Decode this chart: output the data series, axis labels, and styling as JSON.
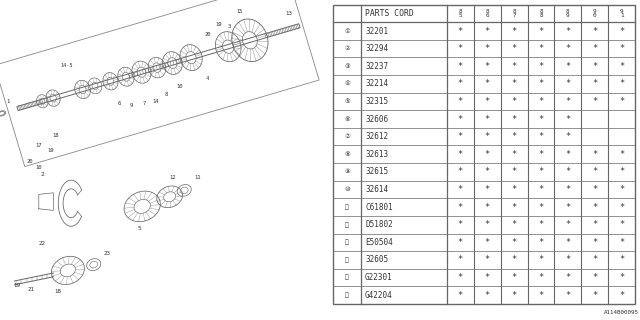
{
  "rows": [
    [
      "①",
      "32201",
      "*",
      "*",
      "*",
      "*",
      "*",
      "*",
      "*"
    ],
    [
      "②",
      "32294",
      "*",
      "*",
      "*",
      "*",
      "*",
      "*",
      "*"
    ],
    [
      "③",
      "32237",
      "*",
      "*",
      "*",
      "*",
      "*",
      "*",
      "*"
    ],
    [
      "④",
      "32214",
      "*",
      "*",
      "*",
      "*",
      "*",
      "*",
      "*"
    ],
    [
      "⑤",
      "32315",
      "*",
      "*",
      "*",
      "*",
      "*",
      "*",
      "*"
    ],
    [
      "⑥",
      "32606",
      "*",
      "*",
      "*",
      "*",
      "*",
      "",
      ""
    ],
    [
      "⑦",
      "32612",
      "*",
      "*",
      "*",
      "*",
      "*",
      "",
      ""
    ],
    [
      "⑧",
      "32613",
      "*",
      "*",
      "*",
      "*",
      "*",
      "*",
      "*"
    ],
    [
      "⑨",
      "32615",
      "*",
      "*",
      "*",
      "*",
      "*",
      "*",
      "*"
    ],
    [
      "⑩",
      "32614",
      "*",
      "*",
      "*",
      "*",
      "*",
      "*",
      "*"
    ],
    [
      "⑪",
      "C61801",
      "*",
      "*",
      "*",
      "*",
      "*",
      "*",
      "*"
    ],
    [
      "⑫",
      "D51802",
      "*",
      "*",
      "*",
      "*",
      "*",
      "*",
      "*"
    ],
    [
      "⑬",
      "E50504",
      "*",
      "*",
      "*",
      "*",
      "*",
      "*",
      "*"
    ],
    [
      "⑭",
      "32605",
      "*",
      "*",
      "*",
      "*",
      "*",
      "*",
      "*"
    ],
    [
      "⑮",
      "G22301",
      "*",
      "*",
      "*",
      "*",
      "*",
      "*",
      "*"
    ],
    [
      "⑯",
      "G42204",
      "*",
      "*",
      "*",
      "*",
      "*",
      "*",
      "*"
    ]
  ],
  "col_headers": [
    "8\n5",
    "8\n6",
    "8\n7",
    "8\n8",
    "8\n9",
    "9\n0",
    "9\n1"
  ],
  "bg_color": "#ffffff",
  "line_color": "#666666",
  "text_color": "#333333",
  "font_size": 5.8,
  "diagram_ref": "A114B00095"
}
